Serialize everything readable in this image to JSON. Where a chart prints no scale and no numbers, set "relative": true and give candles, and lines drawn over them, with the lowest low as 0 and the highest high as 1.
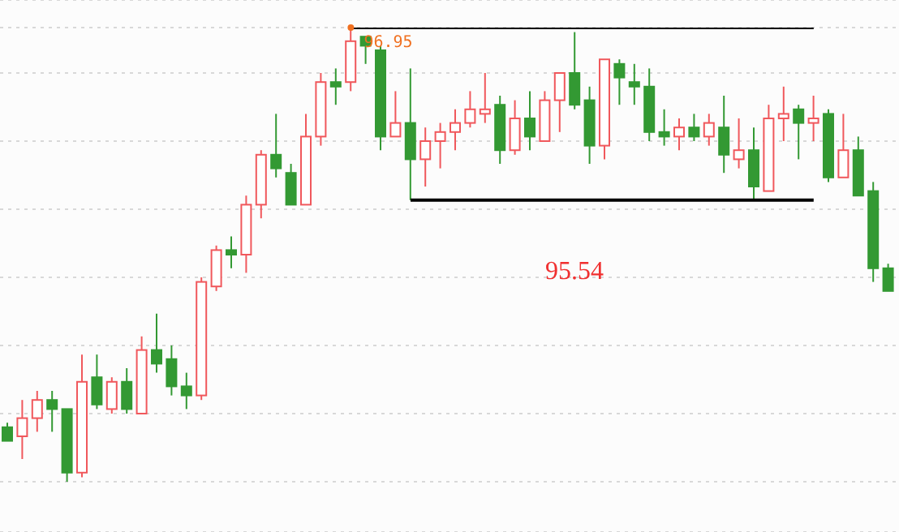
{
  "chart_data": {
    "type": "candlestick",
    "relative": true,
    "grid": "y",
    "legend": false,
    "categories": [
      null,
      null,
      null,
      null,
      null,
      null,
      null,
      null,
      null,
      null,
      null,
      null,
      null,
      null,
      null,
      null,
      null,
      null,
      null,
      null,
      null,
      null,
      null,
      null,
      null,
      null,
      null,
      null,
      null,
      null,
      null,
      null,
      null,
      null,
      null,
      null,
      null,
      null,
      null,
      null,
      null,
      null,
      null,
      null,
      null,
      null,
      null,
      null,
      null,
      null,
      null,
      null,
      null,
      null,
      null,
      null,
      null,
      null,
      null,
      null
    ],
    "ohlc": [
      [
        0.12,
        0.13,
        0.09,
        0.09
      ],
      [
        0.1,
        0.18,
        0.05,
        0.14
      ],
      [
        0.14,
        0.2,
        0.11,
        0.18
      ],
      [
        0.18,
        0.2,
        0.11,
        0.16
      ],
      [
        0.16,
        0.16,
        0.0,
        0.02
      ],
      [
        0.02,
        0.28,
        0.01,
        0.22
      ],
      [
        0.23,
        0.28,
        0.16,
        0.17
      ],
      [
        0.16,
        0.23,
        0.15,
        0.22
      ],
      [
        0.22,
        0.25,
        0.15,
        0.16
      ],
      [
        0.15,
        0.32,
        0.15,
        0.29
      ],
      [
        0.29,
        0.37,
        0.24,
        0.26
      ],
      [
        0.27,
        0.3,
        0.19,
        0.21
      ],
      [
        0.21,
        0.24,
        0.16,
        0.19
      ],
      [
        0.19,
        0.45,
        0.18,
        0.44
      ],
      [
        0.43,
        0.52,
        0.42,
        0.51
      ],
      [
        0.51,
        0.54,
        0.47,
        0.5
      ],
      [
        0.5,
        0.63,
        0.46,
        0.61
      ],
      [
        0.61,
        0.73,
        0.58,
        0.72
      ],
      [
        0.72,
        0.81,
        0.67,
        0.69
      ],
      [
        0.68,
        0.7,
        0.61,
        0.61
      ],
      [
        0.61,
        0.81,
        0.61,
        0.76
      ],
      [
        0.76,
        0.9,
        0.74,
        0.88
      ],
      [
        0.88,
        0.91,
        0.83,
        0.87
      ],
      [
        0.88,
        1.0,
        0.86,
        0.97
      ],
      [
        0.98,
        0.98,
        0.92,
        0.96
      ],
      [
        0.95,
        0.96,
        0.73,
        0.76
      ],
      [
        0.76,
        0.86,
        0.76,
        0.79
      ],
      [
        0.79,
        0.91,
        0.62,
        0.71
      ],
      [
        0.71,
        0.78,
        0.65,
        0.75
      ],
      [
        0.75,
        0.79,
        0.69,
        0.77
      ],
      [
        0.77,
        0.82,
        0.73,
        0.79
      ],
      [
        0.79,
        0.86,
        0.78,
        0.82
      ],
      [
        0.81,
        0.9,
        0.79,
        0.82
      ],
      [
        0.83,
        0.85,
        0.7,
        0.73
      ],
      [
        0.73,
        0.84,
        0.72,
        0.8
      ],
      [
        0.8,
        0.86,
        0.73,
        0.76
      ],
      [
        0.75,
        0.86,
        0.75,
        0.84
      ],
      [
        0.84,
        0.9,
        0.77,
        0.9
      ],
      [
        0.9,
        0.99,
        0.82,
        0.83
      ],
      [
        0.84,
        0.87,
        0.7,
        0.74
      ],
      [
        0.74,
        0.93,
        0.71,
        0.93
      ],
      [
        0.92,
        0.93,
        0.83,
        0.89
      ],
      [
        0.88,
        0.92,
        0.83,
        0.87
      ],
      [
        0.87,
        0.91,
        0.75,
        0.77
      ],
      [
        0.77,
        0.82,
        0.74,
        0.76
      ],
      [
        0.76,
        0.8,
        0.73,
        0.78
      ],
      [
        0.78,
        0.81,
        0.75,
        0.76
      ],
      [
        0.76,
        0.81,
        0.74,
        0.79
      ],
      [
        0.78,
        0.85,
        0.68,
        0.72
      ],
      [
        0.71,
        0.8,
        0.69,
        0.73
      ],
      [
        0.73,
        0.78,
        0.62,
        0.65
      ],
      [
        0.64,
        0.83,
        0.64,
        0.8
      ],
      [
        0.8,
        0.87,
        0.75,
        0.81
      ],
      [
        0.82,
        0.83,
        0.71,
        0.79
      ],
      [
        0.79,
        0.85,
        0.75,
        0.8
      ],
      [
        0.81,
        0.82,
        0.66,
        0.67
      ],
      [
        0.67,
        0.81,
        0.67,
        0.73
      ],
      [
        0.73,
        0.76,
        0.63,
        0.63
      ],
      [
        0.64,
        0.66,
        0.44,
        0.47
      ],
      [
        0.47,
        0.48,
        0.42,
        0.42
      ]
    ],
    "colors": [
      "#339933",
      "#f0585c",
      "#f0585c",
      "#339933",
      "#339933",
      "#f0585c",
      "#339933",
      "#f0585c",
      "#339933",
      "#f0585c",
      "#339933",
      "#339933",
      "#339933",
      "#f0585c",
      "#f0585c",
      "#339933",
      "#f0585c",
      "#f0585c",
      "#339933",
      "#339933",
      "#f0585c",
      "#f0585c",
      "#339933",
      "#f0585c",
      "#339933",
      "#339933",
      "#f0585c",
      "#339933",
      "#f0585c",
      "#f0585c",
      "#f0585c",
      "#f0585c",
      "#f0585c",
      "#339933",
      "#f0585c",
      "#339933",
      "#f0585c",
      "#f0585c",
      "#339933",
      "#339933",
      "#f0585c",
      "#339933",
      "#339933",
      "#339933",
      "#339933",
      "#f0585c",
      "#339933",
      "#f0585c",
      "#339933",
      "#f0585c",
      "#339933",
      "#f0585c",
      "#f0585c",
      "#339933",
      "#f0585c",
      "#339933",
      "#f0585c",
      "#339933",
      "#339933",
      "#339933"
    ],
    "series": [
      {
        "type": "line",
        "color": "#000000",
        "values": [
          null,
          null,
          null,
          null,
          null,
          null,
          null,
          null,
          null,
          null,
          null,
          null,
          null,
          null,
          null,
          null,
          null,
          null,
          null,
          null,
          null,
          null,
          null,
          1.0,
          1.0,
          1.0,
          1.0,
          1.0,
          1.0,
          1.0,
          1.0,
          1.0,
          1.0,
          1.0,
          1.0,
          1.0,
          1.0,
          1.0,
          1.0,
          1.0,
          1.0,
          1.0,
          1.0,
          1.0,
          1.0,
          1.0,
          1.0,
          1.0,
          1.0,
          1.0,
          1.0,
          1.0,
          1.0,
          1.0,
          1.0,
          null,
          null,
          null,
          null,
          null
        ]
      },
      {
        "type": "line",
        "color": "#000000",
        "values": [
          null,
          null,
          null,
          null,
          null,
          null,
          null,
          null,
          null,
          null,
          null,
          null,
          null,
          null,
          null,
          null,
          null,
          null,
          null,
          null,
          null,
          null,
          null,
          null,
          null,
          null,
          null,
          0.62,
          0.62,
          0.62,
          0.62,
          0.62,
          0.62,
          0.62,
          0.62,
          0.62,
          0.62,
          0.62,
          0.62,
          0.62,
          0.62,
          0.62,
          0.62,
          0.62,
          0.62,
          0.62,
          0.62,
          0.62,
          0.62,
          0.62,
          0.62,
          0.62,
          0.62,
          0.62,
          0.62,
          null,
          null,
          null,
          null,
          null
        ]
      }
    ],
    "annotations": [
      {
        "text": "96.95",
        "y": 1.0
      },
      "95.54"
    ]
  }
}
